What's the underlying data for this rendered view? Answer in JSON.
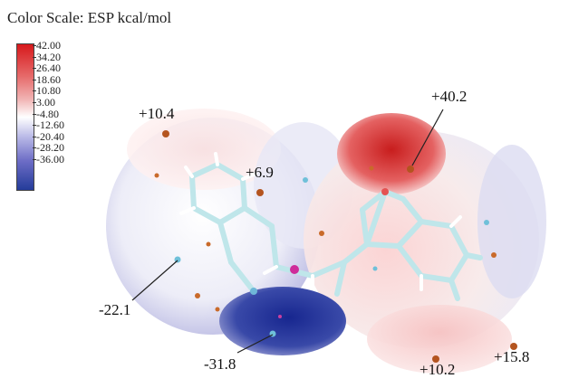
{
  "title": "Color Scale: ESP  kcal/mol",
  "scale": {
    "ticks": [
      "42.00",
      "34.20",
      "26.40",
      "18.60",
      "10.80",
      "3.00",
      "-4.80",
      "-12.60",
      "-20.40",
      "-28.20",
      "-36.00"
    ],
    "colors": {
      "max": "#d7191c",
      "mid": "#ffffff",
      "min": "#243c9a"
    }
  },
  "annotations": {
    "a": "+10.4",
    "b": "+6.9",
    "c": "+40.2",
    "d": "-22.1",
    "e": "-31.8",
    "f": "+10.2",
    "g": "+15.8"
  }
}
